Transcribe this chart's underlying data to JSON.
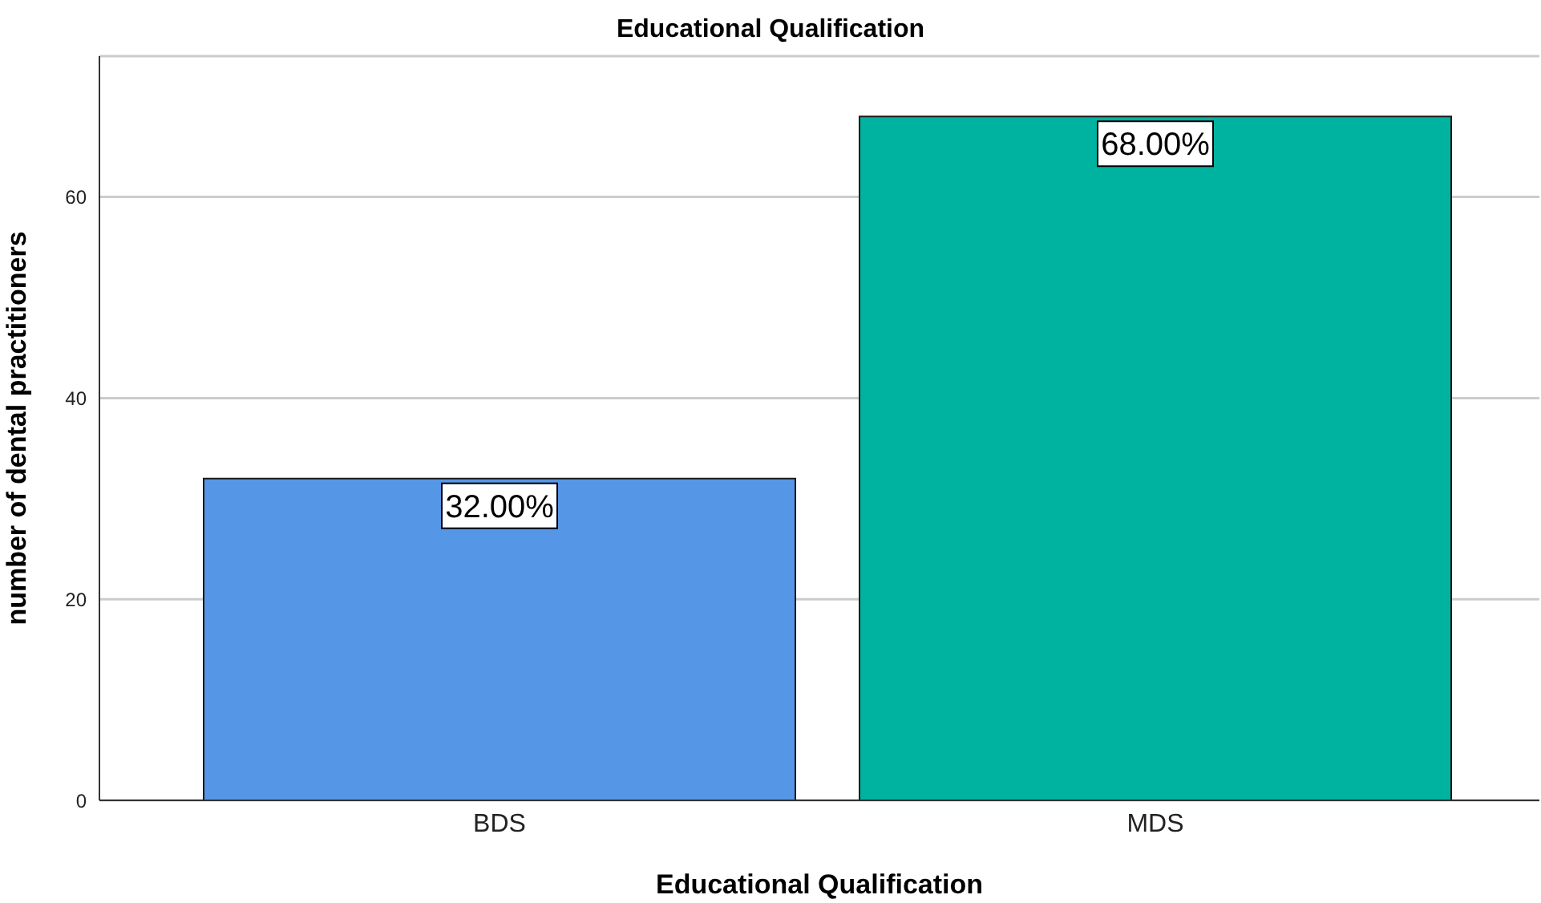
{
  "chart_data": {
    "type": "bar",
    "title": "Educational Qualification",
    "xlabel": "Educational Qualification",
    "ylabel": "number of dental practitioners",
    "categories": [
      "BDS",
      "MDS"
    ],
    "values": [
      32,
      68
    ],
    "colors": [
      "#5596e6",
      "#00b2a0"
    ],
    "value_labels": [
      "32.00%",
      "68.00%"
    ],
    "ylim": [
      0,
      74
    ],
    "yticks": [
      0,
      20,
      40,
      60
    ],
    "grid": "y"
  }
}
